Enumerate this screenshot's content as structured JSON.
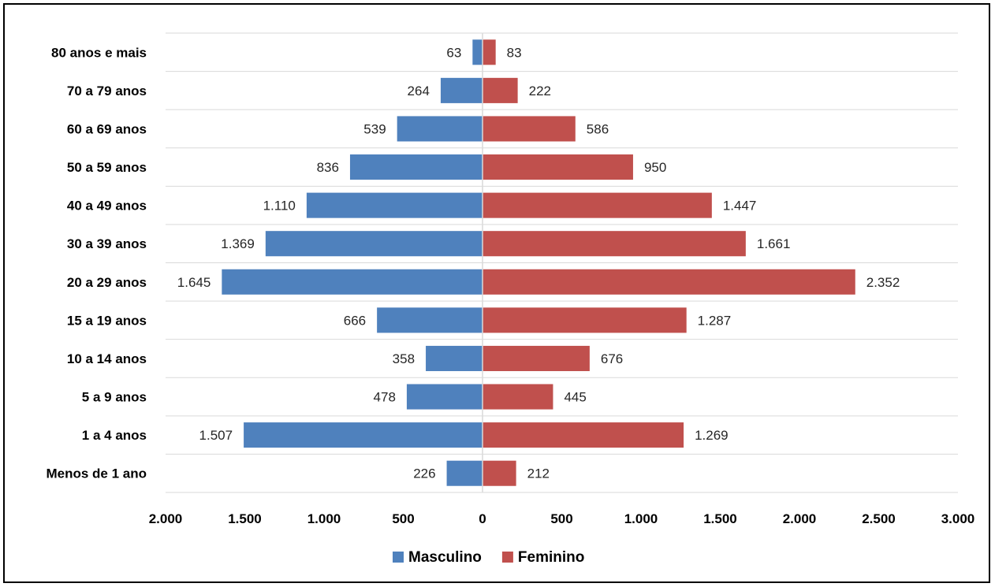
{
  "chart_data": {
    "type": "bar",
    "orientation": "horizontal",
    "layout": "population-pyramid",
    "categories": [
      "80 anos e mais",
      "70 a 79 anos",
      "60 a 69 anos",
      "50 a 59 anos",
      "40 a 49 anos",
      "30 a 39 anos",
      "20 a 29 anos",
      "15 a 19 anos",
      "10 a 14 anos",
      "5 a 9 anos",
      "1 a 4 anos",
      "Menos de 1 ano"
    ],
    "series": [
      {
        "name": "Masculino",
        "color": "#4f81bd",
        "values": [
          63,
          264,
          539,
          836,
          1110,
          1369,
          1645,
          666,
          358,
          478,
          1507,
          226
        ],
        "labels": [
          "63",
          "264",
          "539",
          "836",
          "1.110",
          "1.369",
          "1.645",
          "666",
          "358",
          "478",
          "1.507",
          "226"
        ]
      },
      {
        "name": "Feminino",
        "color": "#c0504d",
        "values": [
          83,
          222,
          586,
          950,
          1447,
          1661,
          2352,
          1287,
          676,
          445,
          1269,
          212
        ],
        "labels": [
          "83",
          "222",
          "586",
          "950",
          "1.447",
          "1.661",
          "2.352",
          "1.287",
          "676",
          "445",
          "1.269",
          "212"
        ]
      }
    ],
    "xlim": [
      -2000,
      3000
    ],
    "x_ticks": [
      {
        "value": -2000,
        "label": "2.000"
      },
      {
        "value": -1500,
        "label": "1.500"
      },
      {
        "value": -1000,
        "label": "1.000"
      },
      {
        "value": -500,
        "label": "500"
      },
      {
        "value": 0,
        "label": "0"
      },
      {
        "value": 500,
        "label": "500"
      },
      {
        "value": 1000,
        "label": "1.000"
      },
      {
        "value": 1500,
        "label": "1.500"
      },
      {
        "value": 2000,
        "label": "2.000"
      },
      {
        "value": 2500,
        "label": "2.500"
      },
      {
        "value": 3000,
        "label": "3.000"
      }
    ],
    "grid": true,
    "legend_position": "bottom",
    "title": "",
    "xlabel": "",
    "ylabel": ""
  }
}
